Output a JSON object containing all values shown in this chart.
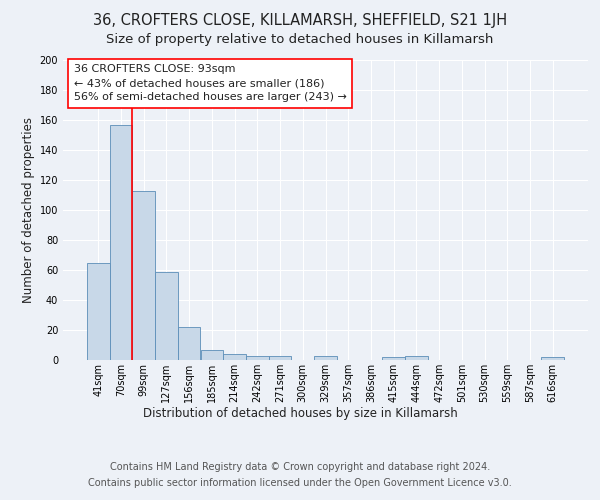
{
  "title1": "36, CROFTERS CLOSE, KILLAMARSH, SHEFFIELD, S21 1JH",
  "title2": "Size of property relative to detached houses in Killamarsh",
  "xlabel": "Distribution of detached houses by size in Killamarsh",
  "ylabel": "Number of detached properties",
  "footer1": "Contains HM Land Registry data © Crown copyright and database right 2024.",
  "footer2": "Contains public sector information licensed under the Open Government Licence v3.0.",
  "bin_labels": [
    "41sqm",
    "70sqm",
    "99sqm",
    "127sqm",
    "156sqm",
    "185sqm",
    "214sqm",
    "242sqm",
    "271sqm",
    "300sqm",
    "329sqm",
    "357sqm",
    "386sqm",
    "415sqm",
    "444sqm",
    "472sqm",
    "501sqm",
    "530sqm",
    "559sqm",
    "587sqm",
    "616sqm"
  ],
  "bar_values": [
    65,
    157,
    113,
    59,
    22,
    7,
    4,
    3,
    3,
    0,
    3,
    0,
    0,
    2,
    3,
    0,
    0,
    0,
    0,
    0,
    2
  ],
  "bar_color": "#c8d8e8",
  "bar_edge_color": "#5b8db8",
  "annotation_line1": "36 CROFTERS CLOSE: 93sqm",
  "annotation_line2": "← 43% of detached houses are smaller (186)",
  "annotation_line3": "56% of semi-detached houses are larger (243) →",
  "red_line_x": 1.5,
  "ylim": [
    0,
    200
  ],
  "yticks": [
    0,
    20,
    40,
    60,
    80,
    100,
    120,
    140,
    160,
    180,
    200
  ],
  "bg_color": "#edf1f7",
  "plot_bg_color": "#edf1f7",
  "grid_color": "#ffffff",
  "title1_fontsize": 10.5,
  "title2_fontsize": 9.5,
  "xlabel_fontsize": 8.5,
  "ylabel_fontsize": 8.5,
  "tick_fontsize": 7,
  "annotation_fontsize": 8,
  "footer_fontsize": 7
}
